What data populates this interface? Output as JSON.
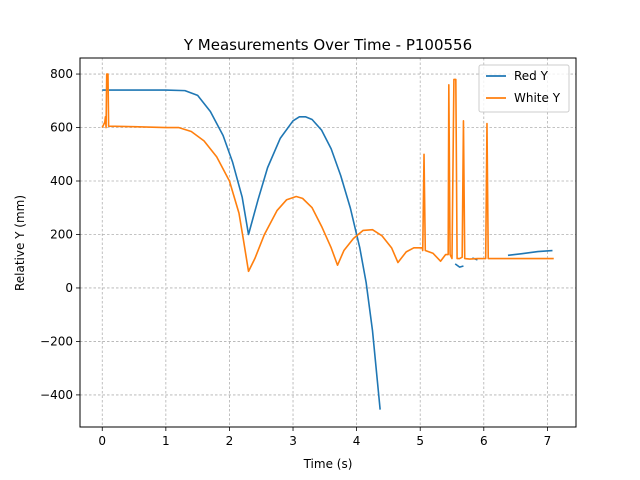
{
  "chart_data": {
    "type": "line",
    "title": "Y Measurements Over Time - P100556",
    "xlabel": "Time (s)",
    "ylabel": "Relative Y (mm)",
    "xlim": [
      -0.35,
      7.45
    ],
    "ylim": [
      -520,
      860
    ],
    "xticks": [
      0,
      1,
      2,
      3,
      4,
      5,
      6,
      7
    ],
    "xtick_labels": [
      "0",
      "1",
      "2",
      "3",
      "4",
      "5",
      "6",
      "7"
    ],
    "yticks": [
      -400,
      -200,
      0,
      200,
      400,
      600,
      800
    ],
    "ytick_labels": [
      "−400",
      "−200",
      "0",
      "200",
      "400",
      "600",
      "800"
    ],
    "grid": true,
    "legend": "top-right",
    "series": [
      {
        "name": "Red Y",
        "color": "#1f77b4",
        "segments": [
          [
            [
              0,
              740
            ],
            [
              0.5,
              740
            ],
            [
              1.0,
              740
            ],
            [
              1.3,
              738
            ],
            [
              1.5,
              720
            ],
            [
              1.7,
              660
            ],
            [
              1.9,
              570
            ],
            [
              2.05,
              470
            ],
            [
              2.2,
              340
            ],
            [
              2.3,
              200
            ],
            [
              2.45,
              330
            ],
            [
              2.6,
              450
            ],
            [
              2.8,
              560
            ],
            [
              3.0,
              625
            ],
            [
              3.1,
              640
            ],
            [
              3.2,
              640
            ],
            [
              3.3,
              630
            ],
            [
              3.45,
              590
            ],
            [
              3.6,
              520
            ],
            [
              3.75,
              420
            ],
            [
              3.9,
              300
            ],
            [
              4.05,
              150
            ],
            [
              4.15,
              20
            ],
            [
              4.25,
              -160
            ],
            [
              4.37,
              -455
            ]
          ],
          [
            [
              5.55,
              90
            ],
            [
              5.62,
              78
            ],
            [
              5.68,
              82
            ]
          ],
          [
            [
              5.82,
              112
            ],
            [
              5.9,
              105
            ]
          ],
          [
            [
              6.38,
              122
            ],
            [
              6.6,
              128
            ],
            [
              6.85,
              136
            ],
            [
              7.08,
              140
            ]
          ]
        ]
      },
      {
        "name": "White Y",
        "color": "#ff7f0e",
        "segments": [
          [
            [
              0,
              600
            ],
            [
              0.02,
              610
            ],
            [
              0.04,
              620
            ],
            [
              0.05,
              640
            ],
            [
              0.06,
              600
            ],
            [
              0.07,
              800
            ],
            [
              0.09,
              800
            ],
            [
              0.1,
              605
            ],
            [
              0.5,
              603
            ],
            [
              1.0,
              600
            ],
            [
              1.2,
              600
            ],
            [
              1.4,
              585
            ],
            [
              1.6,
              550
            ],
            [
              1.8,
              490
            ],
            [
              2.0,
              400
            ],
            [
              2.15,
              280
            ],
            [
              2.22,
              180
            ],
            [
              2.3,
              62
            ],
            [
              2.4,
              110
            ],
            [
              2.55,
              200
            ],
            [
              2.75,
              290
            ],
            [
              2.9,
              330
            ],
            [
              3.05,
              342
            ],
            [
              3.15,
              335
            ],
            [
              3.3,
              300
            ],
            [
              3.45,
              230
            ],
            [
              3.6,
              150
            ],
            [
              3.7,
              85
            ],
            [
              3.8,
              140
            ],
            [
              3.95,
              185
            ],
            [
              4.1,
              215
            ],
            [
              4.25,
              218
            ],
            [
              4.4,
              195
            ],
            [
              4.55,
              150
            ],
            [
              4.65,
              95
            ],
            [
              4.78,
              135
            ],
            [
              4.9,
              150
            ],
            [
              5.03,
              150
            ],
            [
              5.04,
              140
            ],
            [
              5.06,
              500
            ],
            [
              5.08,
              140
            ],
            [
              5.2,
              130
            ],
            [
              5.32,
              100
            ],
            [
              5.4,
              125
            ],
            [
              5.44,
              125
            ],
            [
              5.45,
              760
            ],
            [
              5.47,
              125
            ],
            [
              5.5,
              110
            ],
            [
              5.53,
              780
            ],
            [
              5.56,
              780
            ],
            [
              5.58,
              110
            ],
            [
              5.62,
              110
            ],
            [
              5.66,
              115
            ],
            [
              5.68,
              625
            ],
            [
              5.7,
              110
            ],
            [
              5.78,
              108
            ],
            [
              5.9,
              110
            ],
            [
              6.0,
              110
            ],
            [
              6.03,
              110
            ],
            [
              6.05,
              615
            ],
            [
              6.07,
              110
            ],
            [
              6.4,
              110
            ],
            [
              6.8,
              110
            ],
            [
              7.1,
              110
            ]
          ]
        ]
      }
    ]
  }
}
